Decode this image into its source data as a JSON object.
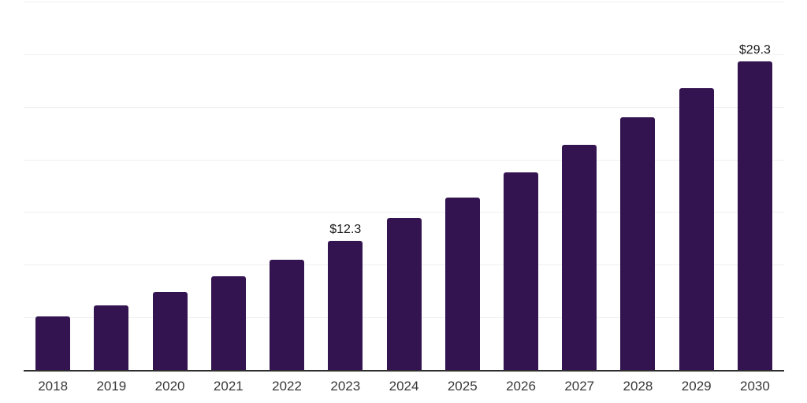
{
  "chart_data": {
    "type": "bar",
    "title": "",
    "xlabel": "",
    "ylabel": "",
    "categories": [
      "2018",
      "2019",
      "2020",
      "2021",
      "2022",
      "2023",
      "2024",
      "2025",
      "2026",
      "2027",
      "2028",
      "2029",
      "2030"
    ],
    "values": [
      5.1,
      6.1,
      7.4,
      8.9,
      10.5,
      12.3,
      14.4,
      16.4,
      18.8,
      21.4,
      24.0,
      26.8,
      29.3
    ],
    "data_labels": {
      "2023": "$12.3",
      "2030": "$29.3"
    },
    "ylim": [
      0,
      35
    ],
    "grid": "on",
    "grid_step": 5,
    "legend": "none",
    "y_tick_labels_visible": false,
    "colors": {
      "background": "#ffffff",
      "bar": "#331450",
      "gridline": "#f0f0f2",
      "axis": "#2d2d2d",
      "x_label_text": "#383838",
      "value_label_text": "#1a1a1a"
    }
  }
}
